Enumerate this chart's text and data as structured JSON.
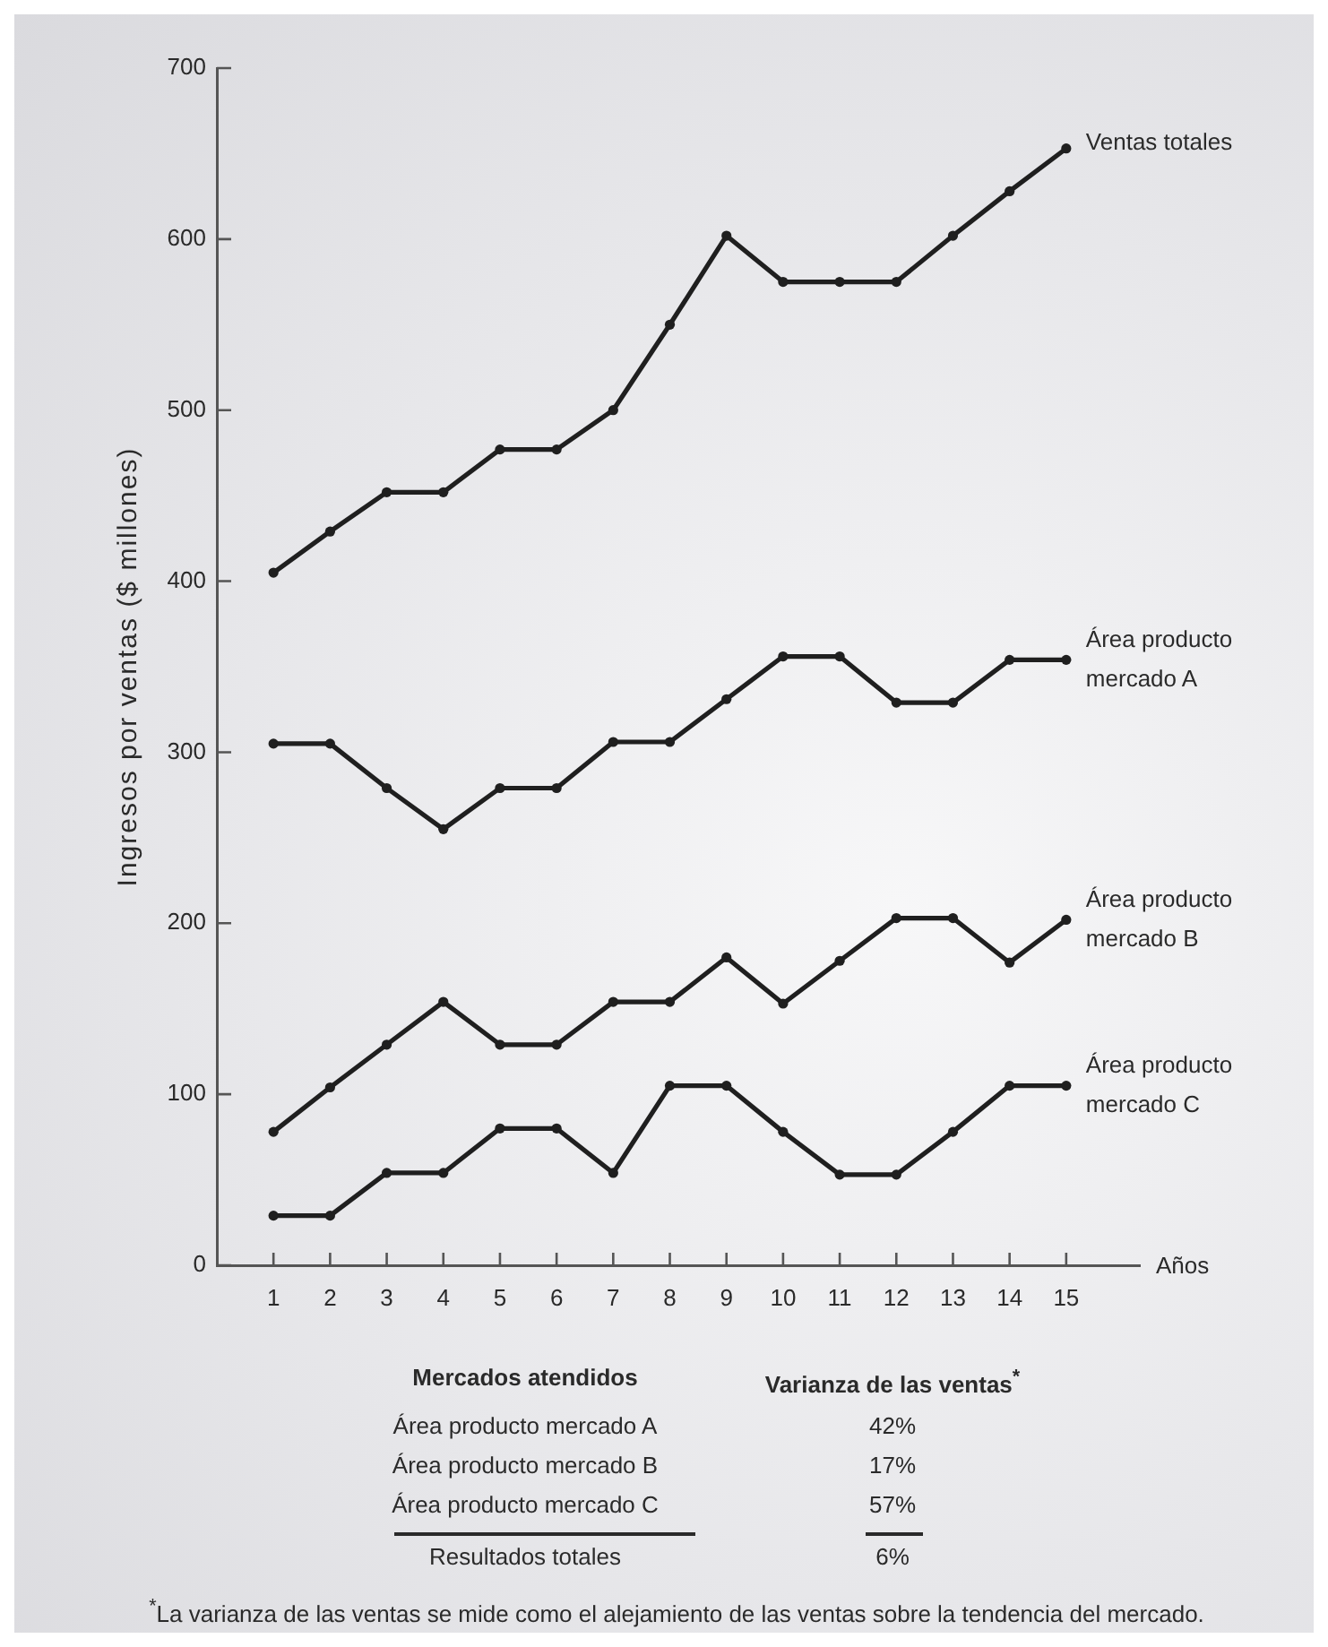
{
  "chart_data": {
    "type": "line",
    "xlabel": "Años",
    "ylabel": "Ingresos por ventas ($ millones)",
    "x": [
      1,
      2,
      3,
      4,
      5,
      6,
      7,
      8,
      9,
      10,
      11,
      12,
      13,
      14,
      15
    ],
    "xlim": [
      0,
      16.3
    ],
    "xticks": [
      1,
      2,
      3,
      4,
      5,
      6,
      7,
      8,
      9,
      10,
      11,
      12,
      13,
      14,
      15
    ],
    "ylim": [
      0,
      700
    ],
    "yticks": [
      0,
      100,
      200,
      300,
      400,
      500,
      600,
      700
    ],
    "series": [
      {
        "name": "Ventas totales",
        "color": "#1f1f1f",
        "values": [
          405,
          429,
          452,
          452,
          477,
          477,
          500,
          550,
          602,
          575,
          575,
          575,
          602,
          628,
          653
        ]
      },
      {
        "name": "Área producto mercado A",
        "color": "#1f1f1f",
        "values": [
          305,
          305,
          279,
          255,
          279,
          279,
          306,
          306,
          331,
          356,
          356,
          329,
          329,
          354,
          354
        ]
      },
      {
        "name": "Área producto mercado B",
        "color": "#1f1f1f",
        "values": [
          78,
          104,
          129,
          154,
          129,
          129,
          154,
          154,
          180,
          153,
          178,
          203,
          203,
          177,
          202
        ]
      },
      {
        "name": "Área producto mercado C",
        "color": "#1f1f1f",
        "values": [
          29,
          29,
          54,
          54,
          80,
          80,
          54,
          105,
          105,
          78,
          53,
          53,
          78,
          105,
          105
        ]
      }
    ],
    "marker": "circle",
    "line_style": "solid",
    "grid": false,
    "legend": false,
    "annotations": [
      "Mercados atendidos",
      "Varianza de las ventas$^{*}$",
      "Área producto mercado A",
      "42%",
      "Área producto mercado B",
      "17%",
      "Área producto mercado C",
      "57%",
      "Resultados totales",
      "6%",
      "$^{*}$La varianza de las ventas se mide como el alejamiento de las ventas sobre la tendencia del mercado."
    ]
  }
}
